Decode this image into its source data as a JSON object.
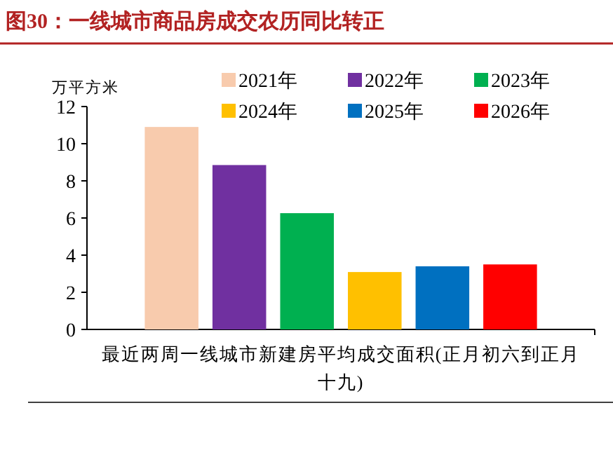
{
  "chart_data": {
    "type": "bar",
    "title": "图30：一线城市商品房成交农历同比转正",
    "ylabel": "万平方米",
    "categories": [
      "最近两周一线城市新建房平均成交面积(正月初六到正月十九)"
    ],
    "series": [
      {
        "name": "2021年",
        "color": "#f8cbad",
        "values": [
          10.9
        ]
      },
      {
        "name": "2022年",
        "color": "#7030a0",
        "values": [
          8.85
        ]
      },
      {
        "name": "2023年",
        "color": "#00b050",
        "values": [
          6.26
        ]
      },
      {
        "name": "2024年",
        "color": "#ffc000",
        "values": [
          3.09
        ]
      },
      {
        "name": "2025年",
        "color": "#0070c0",
        "values": [
          3.4
        ]
      },
      {
        "name": "2026年",
        "color": "#ff0000",
        "values": [
          3.5
        ]
      }
    ],
    "ylim": [
      0,
      12
    ],
    "yticks": [
      0,
      2,
      4,
      6,
      8,
      10,
      12
    ],
    "grid": false,
    "legend": "top right"
  }
}
